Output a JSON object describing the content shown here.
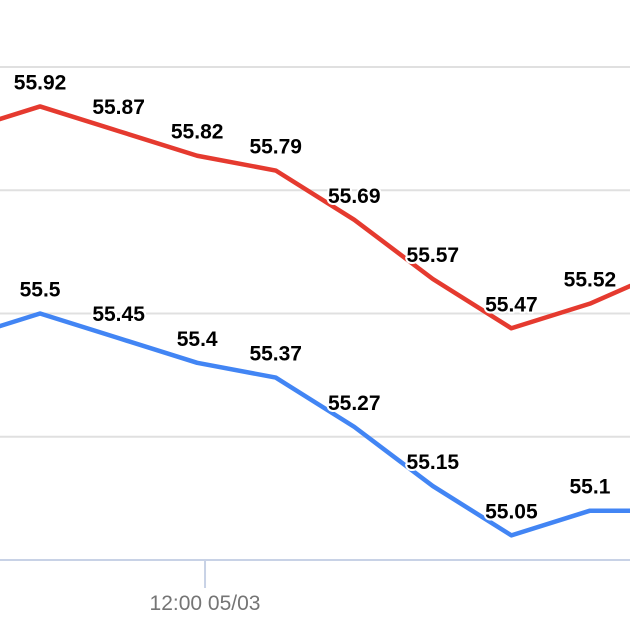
{
  "chart_data": {
    "type": "line",
    "title": "",
    "xlabel": "",
    "ylabel": "",
    "x": [
      -1,
      0,
      1,
      2,
      3,
      4,
      5,
      6,
      7,
      8
    ],
    "xlim": [
      -0.51,
      7.51
    ],
    "ylim": [
      55.0,
      56.0
    ],
    "y_gridlines": [
      55.25,
      55.5,
      55.75,
      56.0
    ],
    "grid": true,
    "x_ticks": [
      {
        "x": 2.1,
        "label": "12:00 05/03"
      }
    ],
    "series": [
      {
        "color": "#e53a2f",
        "values": [
          55.87,
          55.92,
          55.87,
          55.82,
          55.79,
          55.69,
          55.57,
          55.47,
          55.52,
          55.59
        ],
        "labels": [
          null,
          "55.92",
          "55.87",
          "55.82",
          "55.79",
          "55.69",
          "55.57",
          "55.47",
          "55.52",
          null
        ]
      },
      {
        "color": "#4285f4",
        "values": [
          55.45,
          55.5,
          55.45,
          55.4,
          55.37,
          55.27,
          55.15,
          55.05,
          55.1,
          55.1
        ],
        "labels": [
          null,
          "55.5",
          "55.45",
          "55.4",
          "55.37",
          "55.27",
          "55.15",
          "55.05",
          "55.1",
          null
        ]
      }
    ]
  }
}
